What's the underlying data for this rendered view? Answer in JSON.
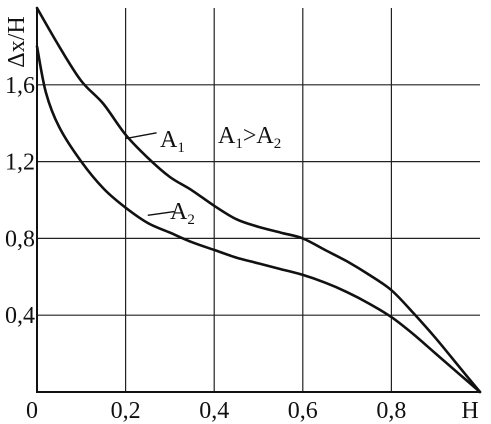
{
  "chart_data": {
    "type": "line",
    "title": "",
    "xlabel": "H",
    "ylabel": "Δx/H",
    "xlim": [
      0,
      1.0
    ],
    "ylim": [
      0,
      2.0
    ],
    "x_ticks": [
      "0",
      "0,2",
      "0,4",
      "0,6",
      "0,8",
      "H"
    ],
    "y_ticks": [
      "0,4",
      "0,8",
      "1,2",
      "1,6"
    ],
    "grid": true,
    "annotation": {
      "main": "A",
      "sub1": "1",
      "rel": ">",
      "sub2": "2"
    },
    "series": [
      {
        "name": "A1",
        "label_main": "A",
        "label_sub": "1",
        "points": [
          [
            0,
            2.0
          ],
          [
            0.05,
            1.8
          ],
          [
            0.1,
            1.62
          ],
          [
            0.15,
            1.5
          ],
          [
            0.2,
            1.34
          ],
          [
            0.25,
            1.22
          ],
          [
            0.3,
            1.12
          ],
          [
            0.35,
            1.05
          ],
          [
            0.4,
            0.97
          ],
          [
            0.45,
            0.9
          ],
          [
            0.5,
            0.86
          ],
          [
            0.55,
            0.83
          ],
          [
            0.6,
            0.8
          ],
          [
            0.65,
            0.74
          ],
          [
            0.7,
            0.68
          ],
          [
            0.75,
            0.61
          ],
          [
            0.8,
            0.53
          ],
          [
            0.85,
            0.41
          ],
          [
            0.9,
            0.28
          ],
          [
            0.95,
            0.14
          ],
          [
            1.0,
            0.0
          ]
        ]
      },
      {
        "name": "A2",
        "label_main": "A",
        "label_sub": "2",
        "points": [
          [
            0,
            1.8
          ],
          [
            0.02,
            1.56
          ],
          [
            0.05,
            1.38
          ],
          [
            0.1,
            1.2
          ],
          [
            0.15,
            1.06
          ],
          [
            0.2,
            0.96
          ],
          [
            0.25,
            0.88
          ],
          [
            0.3,
            0.83
          ],
          [
            0.35,
            0.78
          ],
          [
            0.4,
            0.74
          ],
          [
            0.45,
            0.7
          ],
          [
            0.5,
            0.67
          ],
          [
            0.55,
            0.64
          ],
          [
            0.6,
            0.61
          ],
          [
            0.65,
            0.57
          ],
          [
            0.7,
            0.52
          ],
          [
            0.75,
            0.46
          ],
          [
            0.8,
            0.39
          ],
          [
            0.85,
            0.3
          ],
          [
            0.9,
            0.2
          ],
          [
            0.95,
            0.1
          ],
          [
            1.0,
            0.0
          ]
        ]
      }
    ]
  }
}
